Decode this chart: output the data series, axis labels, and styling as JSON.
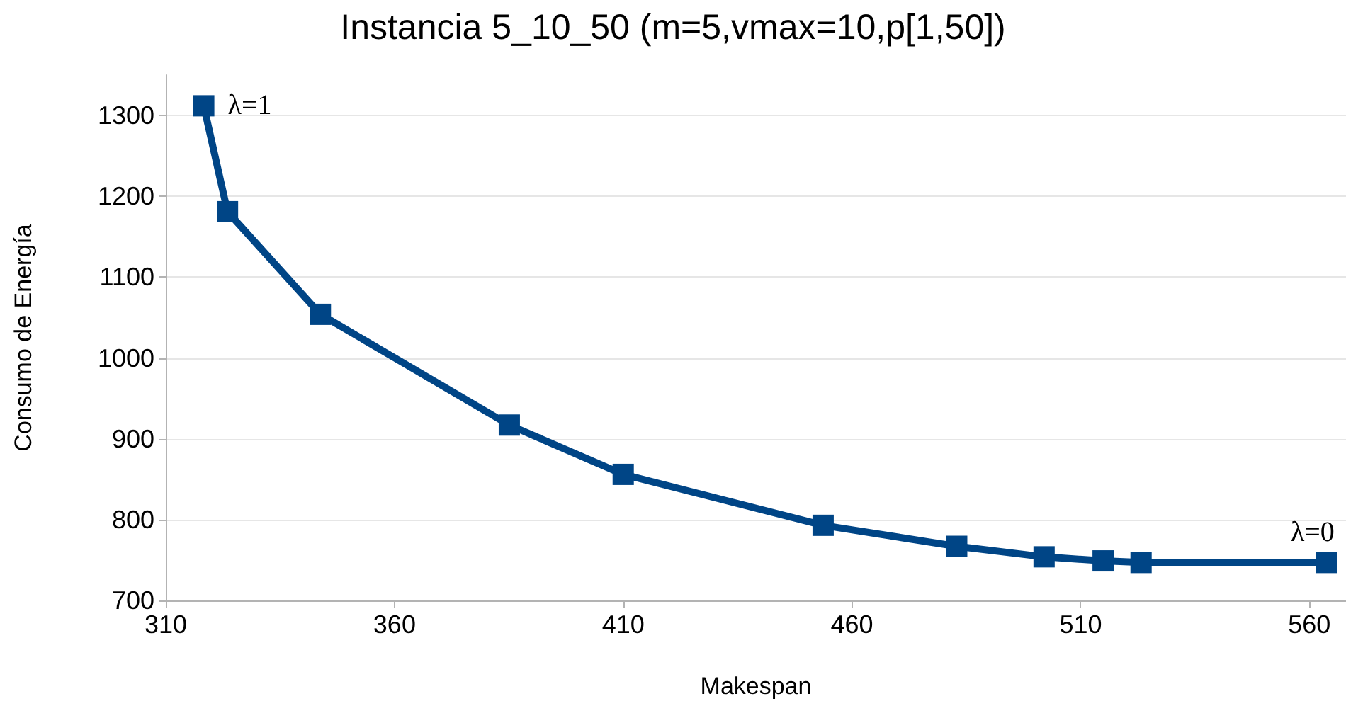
{
  "chart_data": {
    "type": "line",
    "title": "Instancia 5_10_50 (m=5,vmax=10,p[1,50])",
    "xlabel": "Makespan",
    "ylabel": "Consumo de Energía",
    "x": [
      318.3,
      323.5,
      343.8,
      385.1,
      410,
      453.7,
      482.9,
      502,
      514.9,
      523.2,
      563.8
    ],
    "series": [
      {
        "color": "#004586",
        "values": [
          1312,
          1181,
          1054,
          917,
          856,
          793,
          767,
          754,
          749,
          747,
          747
        ]
      }
    ],
    "annotations": [
      {
        "text": "λ=1",
        "x": 318.3,
        "y": 1312
      },
      {
        "text": "λ=0",
        "x": 563.8,
        "y": 747
      }
    ],
    "xlim": [
      310,
      568
    ],
    "xticks": [
      310,
      360,
      410,
      460,
      510,
      560
    ],
    "ylim": [
      700,
      1350
    ],
    "yticks": [
      700,
      800,
      900,
      1000,
      1100,
      1200,
      1300
    ],
    "grid": "y",
    "marker": "square",
    "line_style": "solid"
  }
}
